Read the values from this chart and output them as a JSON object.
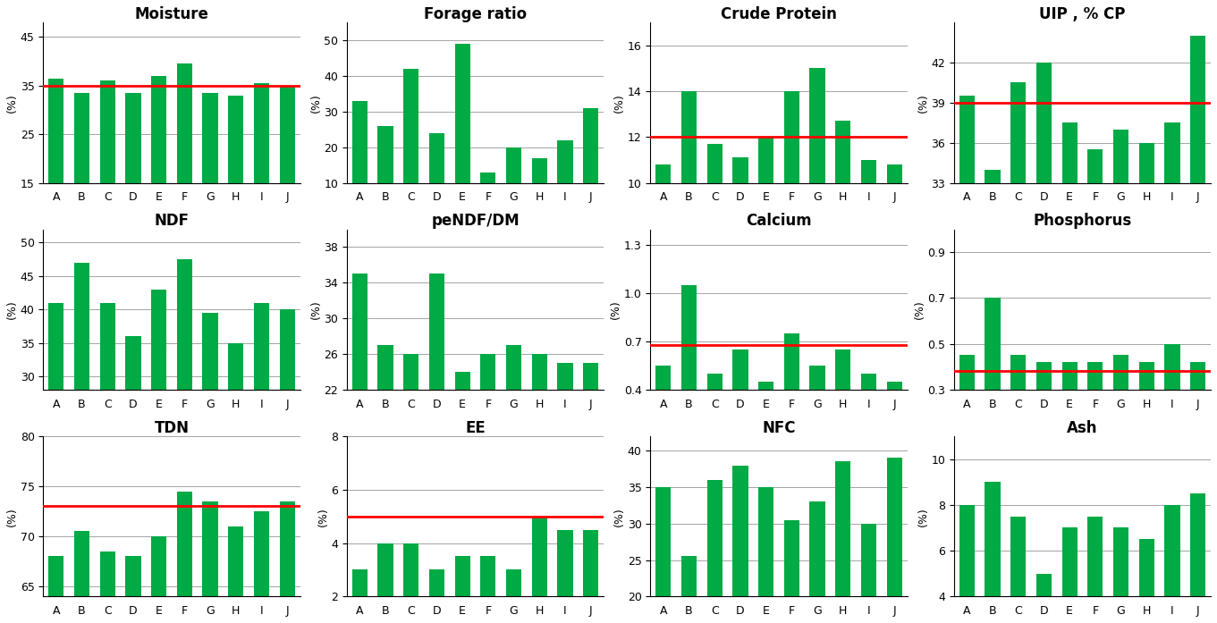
{
  "categories": [
    "A",
    "B",
    "C",
    "D",
    "E",
    "F",
    "G",
    "H",
    "I",
    "J"
  ],
  "charts": [
    {
      "title": "Moisture",
      "ylabel": "(%)",
      "ylim": [
        15,
        48
      ],
      "yticks": [
        15,
        25,
        35,
        45
      ],
      "values": [
        36.5,
        33.5,
        36.0,
        33.5,
        37.0,
        39.5,
        33.5,
        33.0,
        35.5,
        35.0
      ],
      "refline": 35.0,
      "refline_show": true
    },
    {
      "title": "Forage ratio",
      "ylabel": "(%)",
      "ylim": [
        10,
        55
      ],
      "yticks": [
        10,
        20,
        30,
        40,
        50
      ],
      "values": [
        33.0,
        26.0,
        42.0,
        24.0,
        49.0,
        13.0,
        20.0,
        17.0,
        22.0,
        31.0
      ],
      "refline": null,
      "refline_show": false
    },
    {
      "title": "Crude Protein",
      "ylabel": "(%)",
      "ylim": [
        10,
        17
      ],
      "yticks": [
        10,
        12,
        14,
        16
      ],
      "values": [
        10.8,
        14.0,
        11.7,
        11.1,
        12.0,
        14.0,
        15.0,
        12.7,
        11.0,
        10.8
      ],
      "refline": 12.0,
      "refline_show": true
    },
    {
      "title": "UIP , % CP",
      "ylabel": "(%)",
      "ylim": [
        33,
        45
      ],
      "yticks": [
        33,
        36,
        39,
        42
      ],
      "values": [
        39.5,
        34.0,
        40.5,
        42.0,
        37.5,
        35.5,
        37.0,
        36.0,
        37.5,
        44.0
      ],
      "refline": 39.0,
      "refline_show": true
    },
    {
      "title": "NDF",
      "ylabel": "(%)",
      "ylim": [
        28,
        52
      ],
      "yticks": [
        30,
        35,
        40,
        45,
        50
      ],
      "values": [
        41.0,
        47.0,
        41.0,
        36.0,
        43.0,
        47.5,
        39.5,
        35.0,
        41.0,
        40.0
      ],
      "refline": null,
      "refline_show": false
    },
    {
      "title": "peNDF/DM",
      "ylabel": "(%)",
      "ylim": [
        22,
        40
      ],
      "yticks": [
        22,
        26,
        30,
        34,
        38
      ],
      "values": [
        35.0,
        27.0,
        26.0,
        35.0,
        24.0,
        26.0,
        27.0,
        26.0,
        25.0,
        25.0
      ],
      "refline": null,
      "refline_show": false
    },
    {
      "title": "Calcium",
      "ylabel": "(%)",
      "ylim": [
        0.4,
        1.4
      ],
      "yticks": [
        0.4,
        0.7,
        1.0,
        1.3
      ],
      "values": [
        0.55,
        1.05,
        0.5,
        0.65,
        0.45,
        0.75,
        0.55,
        0.65,
        0.5,
        0.45
      ],
      "refline": 0.68,
      "refline_show": true
    },
    {
      "title": "Phosphorus",
      "ylabel": "(%)",
      "ylim": [
        0.3,
        1.0
      ],
      "yticks": [
        0.3,
        0.5,
        0.7,
        0.9
      ],
      "values": [
        0.45,
        0.7,
        0.45,
        0.42,
        0.42,
        0.42,
        0.45,
        0.42,
        0.5,
        0.42
      ],
      "refline": 0.38,
      "refline_show": true
    },
    {
      "title": "TDN",
      "ylabel": "(%)",
      "ylim": [
        64,
        80
      ],
      "yticks": [
        65,
        70,
        75,
        80
      ],
      "values": [
        68.0,
        70.5,
        68.5,
        68.0,
        70.0,
        74.5,
        73.5,
        71.0,
        72.5,
        73.5
      ],
      "refline": 73.0,
      "refline_show": true
    },
    {
      "title": "EE",
      "ylabel": "(%)",
      "ylim": [
        2,
        8
      ],
      "yticks": [
        2,
        4,
        6,
        8
      ],
      "values": [
        3.0,
        4.0,
        4.0,
        3.0,
        3.5,
        3.5,
        3.0,
        5.0,
        4.5,
        4.5
      ],
      "refline": 5.0,
      "refline_show": true
    },
    {
      "title": "NFC",
      "ylabel": "(%)",
      "ylim": [
        20,
        42
      ],
      "yticks": [
        20,
        25,
        30,
        35,
        40
      ],
      "values": [
        35.0,
        25.5,
        36.0,
        38.0,
        35.0,
        30.5,
        33.0,
        38.5,
        30.0,
        39.0
      ],
      "refline": null,
      "refline_show": false
    },
    {
      "title": "Ash",
      "ylabel": "(%)",
      "ylim": [
        4,
        11
      ],
      "yticks": [
        4,
        6,
        8,
        10
      ],
      "values": [
        8.0,
        9.0,
        7.5,
        5.0,
        7.0,
        7.5,
        7.0,
        6.5,
        8.0,
        8.5
      ],
      "refline": null,
      "refline_show": false
    }
  ],
  "bar_color": "#00AA44",
  "refline_color": "#FF0000",
  "background_color": "#FFFFFF"
}
